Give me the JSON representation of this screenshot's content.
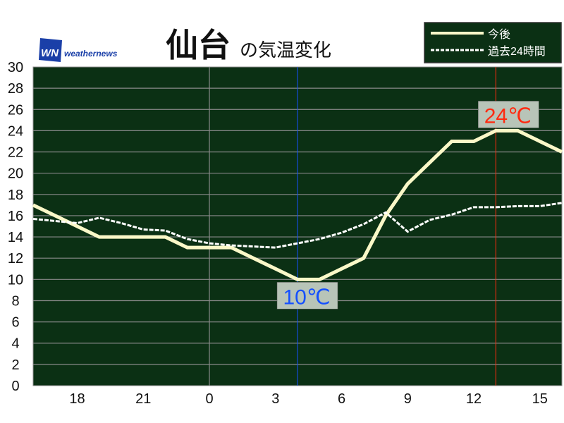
{
  "brand": {
    "logo_text": "WN",
    "name": "weathernews"
  },
  "title": {
    "city": "仙台",
    "suffix": "の気温変化"
  },
  "legend": {
    "forecast": "今後",
    "past": "過去24時間"
  },
  "colors": {
    "plot_bg": "#0b3014",
    "grid": "#8a8a8a",
    "forecast_line": "#fbf8c8",
    "past_line": "#ffffff",
    "min_color": "#1450ff",
    "max_color": "#ff2a10",
    "label_bg": "#b8c4b8"
  },
  "chart_data": {
    "type": "line",
    "xlabel": "",
    "ylabel": "",
    "ylim": [
      0,
      30
    ],
    "yticks": [
      0,
      2,
      4,
      6,
      8,
      10,
      12,
      14,
      16,
      18,
      20,
      22,
      24,
      26,
      28,
      30
    ],
    "x_hours": [
      16,
      17,
      18,
      19,
      20,
      21,
      22,
      23,
      0,
      1,
      2,
      3,
      4,
      5,
      6,
      7,
      8,
      9,
      10,
      11,
      12,
      13,
      14,
      15,
      16
    ],
    "xtick_labels": [
      "18",
      "21",
      "0",
      "3",
      "6",
      "9",
      "12",
      "15"
    ],
    "grid": true,
    "legend_placement": "top-right",
    "series": [
      {
        "name": "今後",
        "style": "solid",
        "values": [
          17,
          16,
          15,
          14,
          14,
          14,
          14,
          13,
          13,
          13,
          12,
          11,
          10,
          10,
          11,
          12,
          16,
          19,
          21,
          23,
          23,
          24,
          24,
          23,
          22
        ]
      },
      {
        "name": "過去24時間",
        "style": "dashed",
        "values": [
          15.7,
          15.5,
          15.3,
          15.8,
          15.3,
          14.7,
          14.6,
          13.8,
          13.4,
          13.2,
          13.1,
          13.0,
          13.4,
          13.8,
          14.4,
          15.2,
          16.3,
          14.5,
          15.6,
          16.1,
          16.8,
          16.8,
          16.9,
          16.9,
          17.2
        ]
      }
    ],
    "annotations": [
      {
        "text": "10℃",
        "hour": 4,
        "value": 10,
        "kind": "min"
      },
      {
        "text": "24℃",
        "hour": 13,
        "value": 24,
        "kind": "max"
      }
    ]
  }
}
